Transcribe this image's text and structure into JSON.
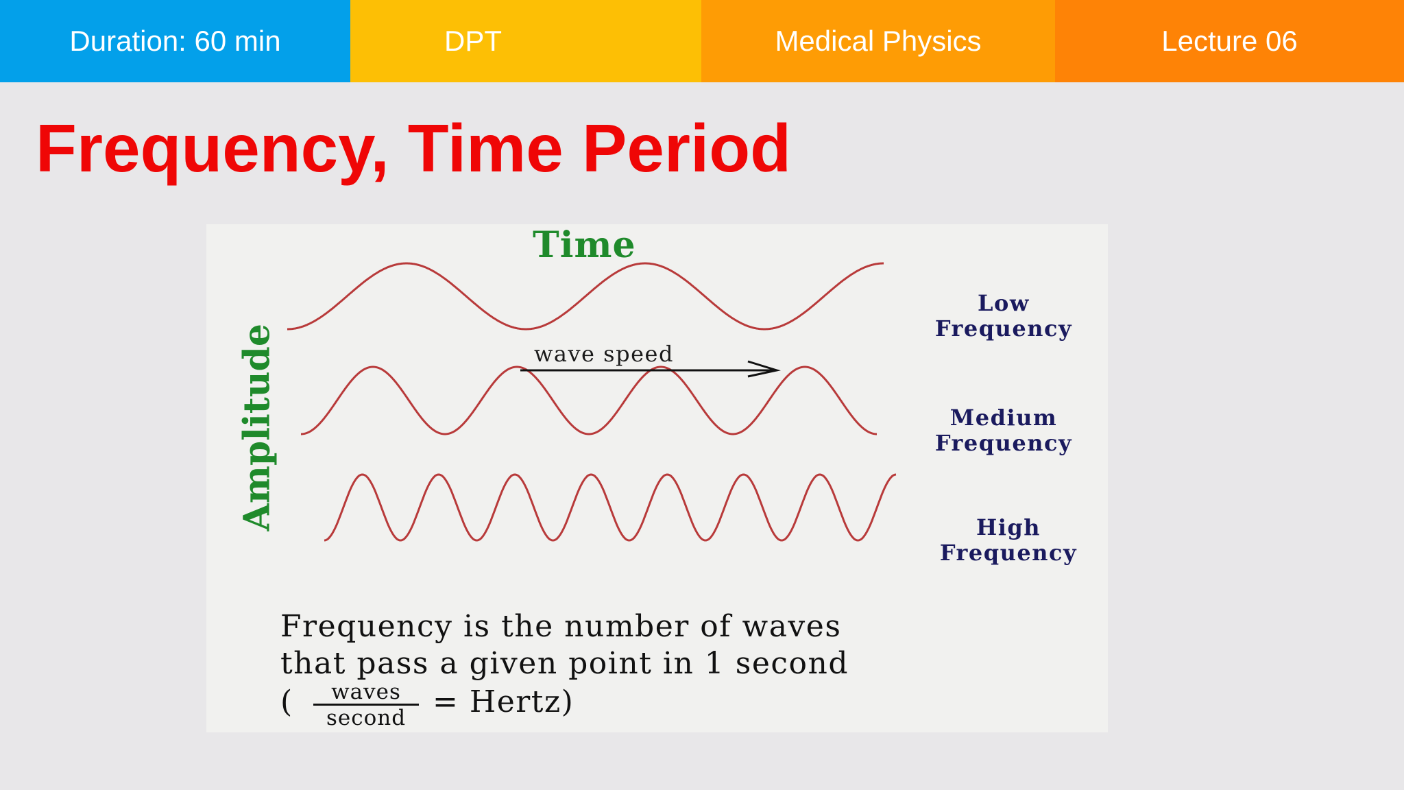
{
  "header": {
    "duration": "Duration: 60 min",
    "program": "DPT",
    "subject": "Medical Physics",
    "lecture": "Lecture 06"
  },
  "slide": {
    "title": "Frequency, Time Period"
  },
  "figure": {
    "x_axis_label": "Time",
    "y_axis_label": "Amplitude",
    "arrow_label": "wave speed",
    "waves": [
      {
        "label_line1": "Low",
        "label_line2": "Frequency",
        "cycles": 2.5
      },
      {
        "label_line1": "Medium",
        "label_line2": "Frequency",
        "cycles": 4
      },
      {
        "label_line1": "High",
        "label_line2": "Frequency",
        "cycles": 7.5
      }
    ],
    "definition_line1": "Frequency is the number of waves",
    "definition_line2": "that pass a given point in 1  second",
    "unit_open": "(",
    "unit_numerator": "waves",
    "unit_denominator": "second",
    "unit_equals": "= Hertz)"
  },
  "colors": {
    "header_blue": "#03a0ea",
    "header_yellow": "#fdbf05",
    "header_orange": "#fe9c05",
    "header_dark_orange": "#fe8306",
    "title_red": "#ef0606",
    "wave_red": "#b83a3a",
    "axis_green": "#1f8a2b",
    "frequency_navy": "#1a1a5e"
  }
}
